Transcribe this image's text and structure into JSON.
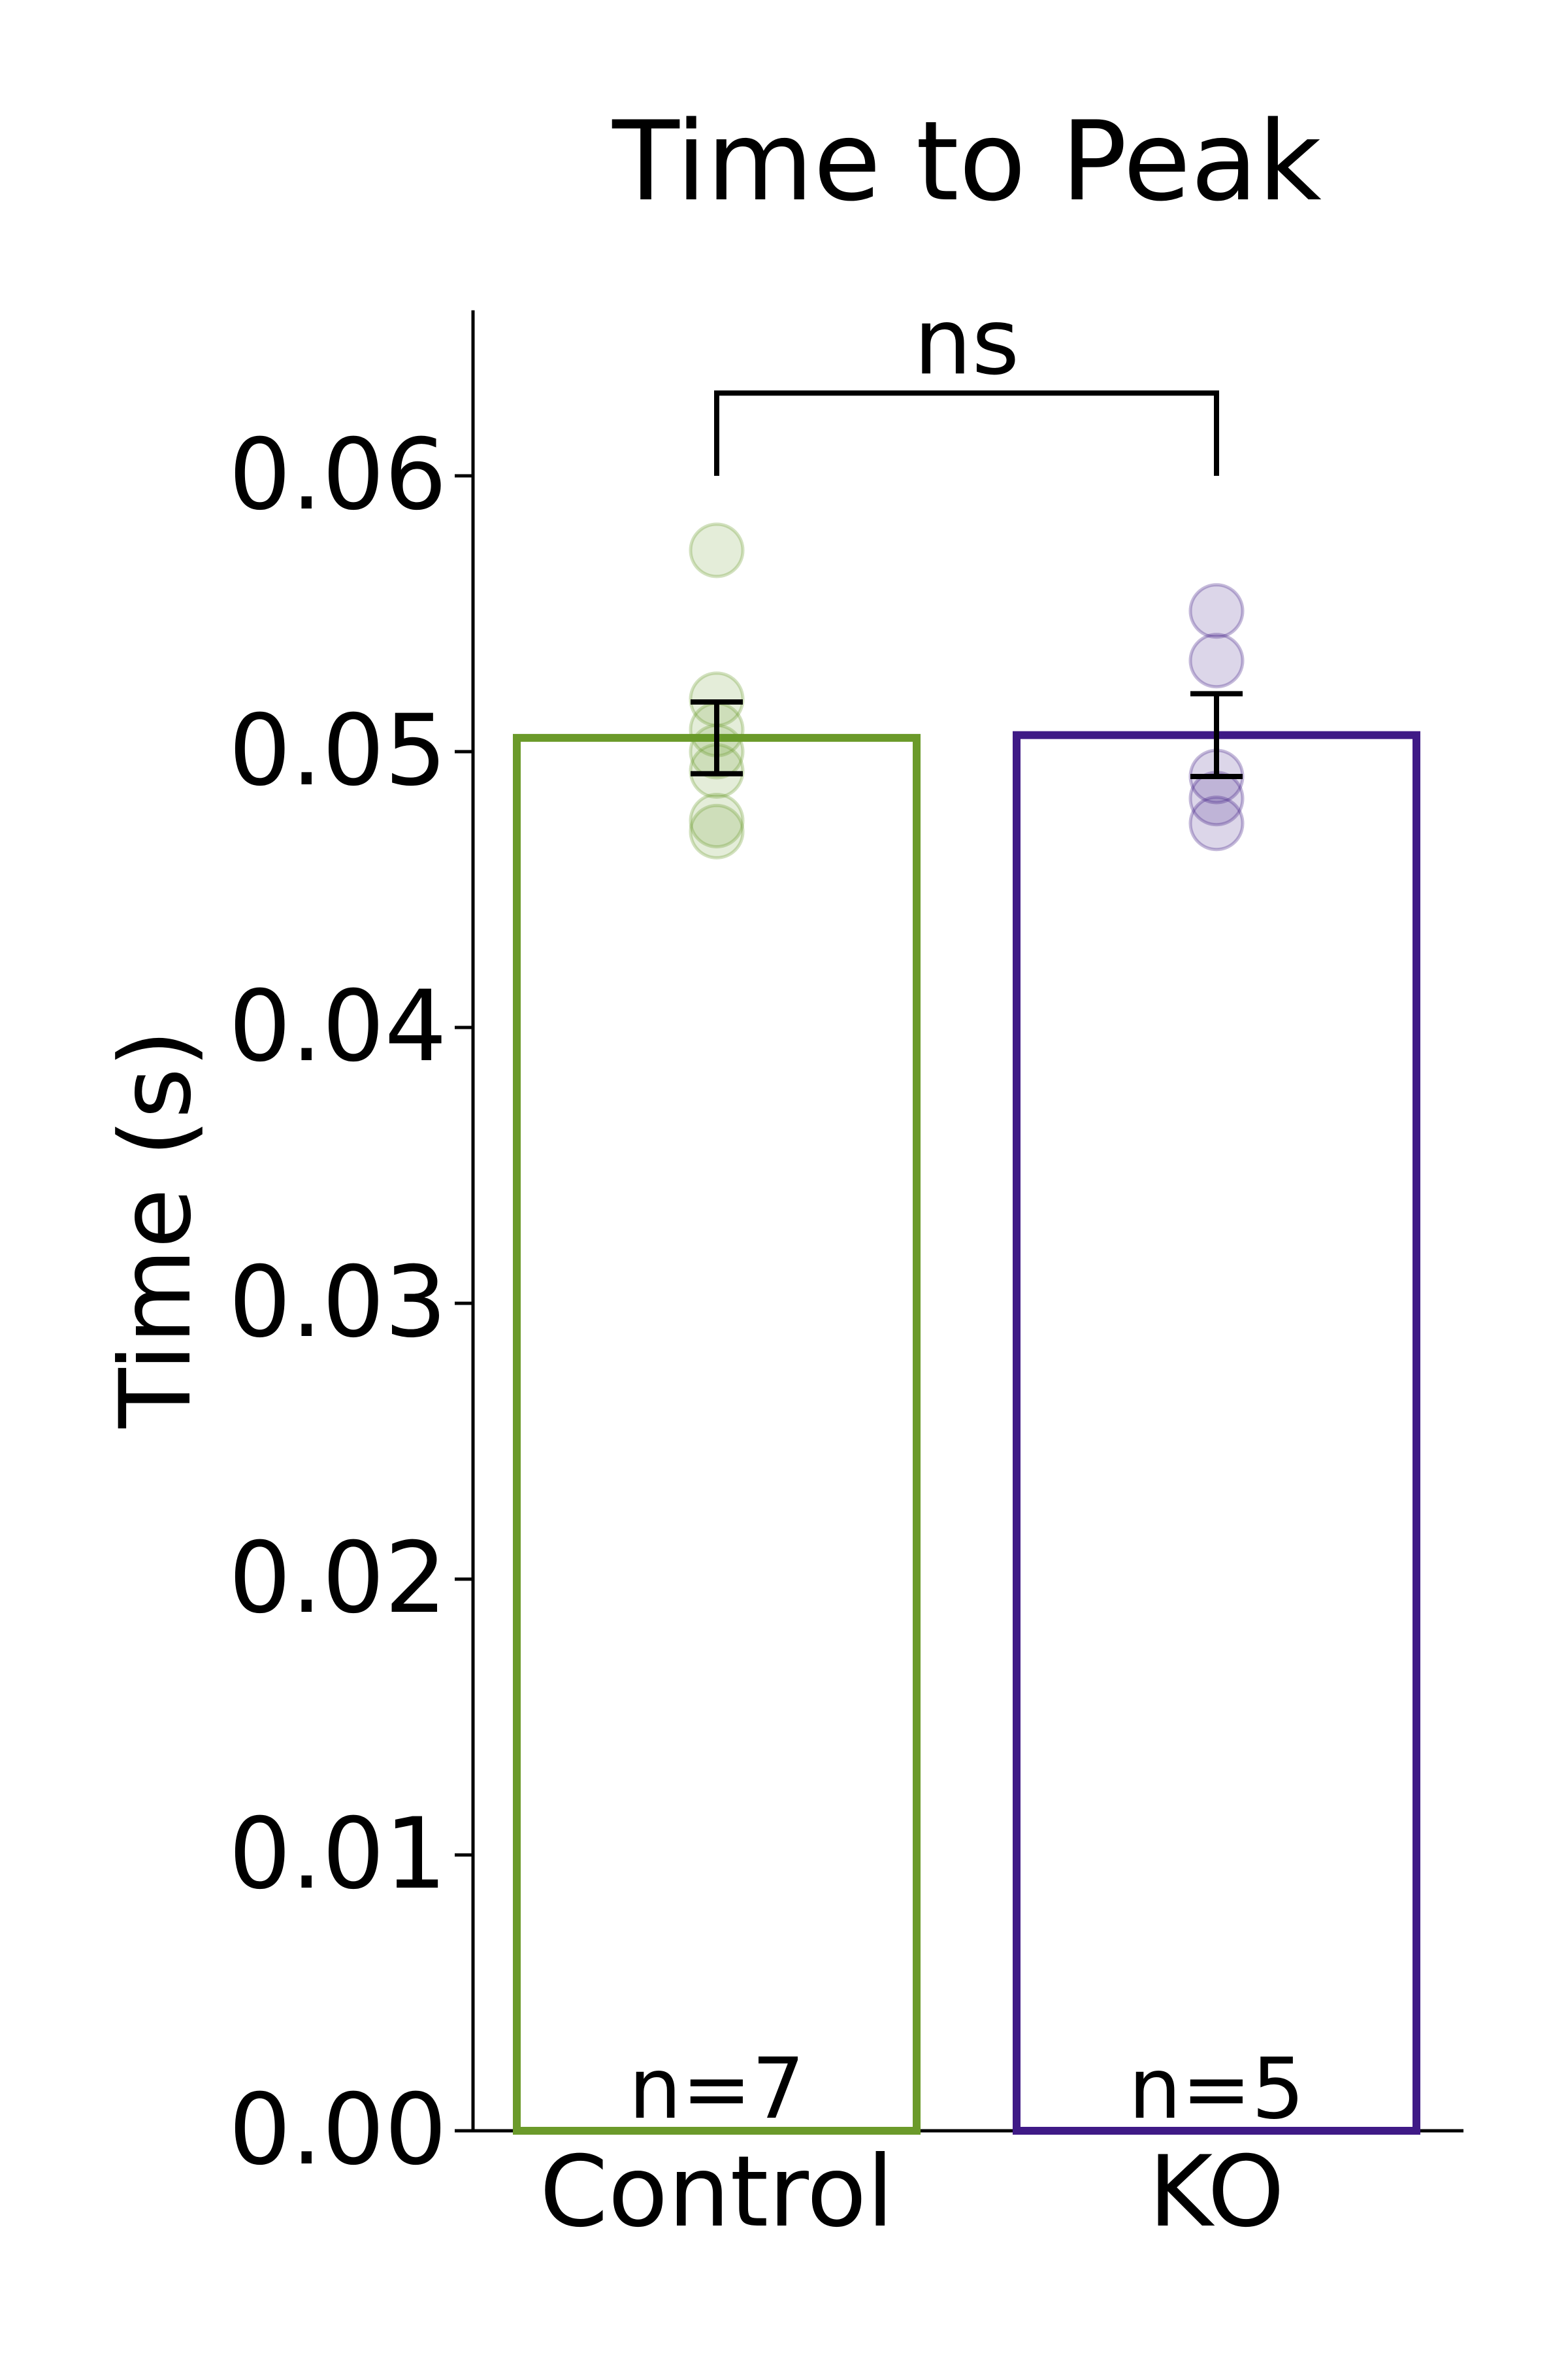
{
  "chart_data": {
    "type": "bar",
    "title": "Time to Peak",
    "xlabel": "",
    "ylabel": "Time (s)",
    "ylim": [
      0,
      0.066
    ],
    "yticks": [
      0.0,
      0.01,
      0.02,
      0.03,
      0.04,
      0.05,
      0.06
    ],
    "ytick_labels": [
      "0.00",
      "0.01",
      "0.02",
      "0.03",
      "0.04",
      "0.05",
      "0.06"
    ],
    "categories": [
      "Control",
      "KO"
    ],
    "values": [
      0.0505,
      0.0506
    ],
    "errors": [
      0.0013,
      0.0015
    ],
    "bar_colors": [
      "#6b9a2a",
      "#3f1a86"
    ],
    "bar_fill": "none",
    "n_labels": [
      "n=7",
      "n=5"
    ],
    "points": [
      [
        0.0573,
        0.0519,
        0.0508,
        0.05,
        0.0493,
        0.0475,
        0.0471
      ],
      [
        0.0551,
        0.0533,
        0.0491,
        0.0483,
        0.0474
      ]
    ],
    "significance": {
      "label": "ns",
      "between": [
        0,
        1
      ],
      "bracket_y": [
        0.06,
        0.063
      ]
    },
    "grid": false,
    "legend": "none"
  }
}
